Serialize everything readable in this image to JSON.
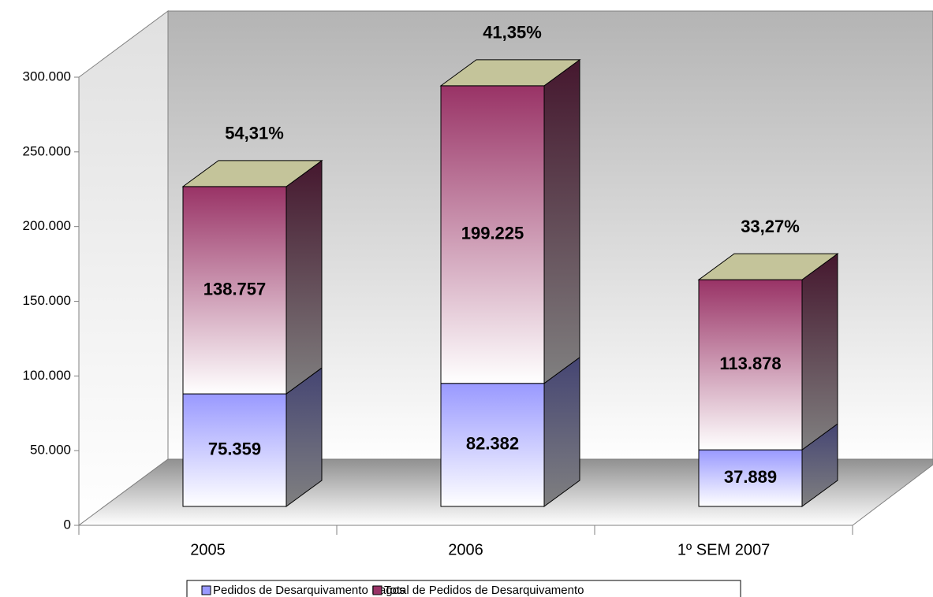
{
  "chart_data": {
    "type": "bar3d_stacked",
    "categories": [
      "2005",
      "2006",
      "1º SEM 2007"
    ],
    "series": [
      {
        "name": "Pedidos de Desarquivamento Pagos",
        "color": "#9999ff",
        "values": [
          75359,
          82382,
          37889
        ],
        "value_labels": [
          "75.359",
          "82.382",
          "37.889"
        ]
      },
      {
        "name": "Total de Pedidos de Desarquivamento",
        "color": "#993366",
        "values": [
          138757,
          199225,
          113878
        ],
        "value_labels": [
          "138.757",
          "199.225",
          "113.878"
        ]
      }
    ],
    "annotations": [
      "54,31%",
      "41,35%",
      "33,27%"
    ],
    "ylim": [
      0,
      300000
    ],
    "yticks": [
      0,
      {
        "value": 50000,
        "label": "50.000"
      },
      {
        "value": 100000,
        "label": "100.000"
      },
      {
        "value": 150000,
        "label": "150.000"
      },
      {
        "value": 200000,
        "label": "200.000"
      },
      {
        "value": 250000,
        "label": "250.000"
      },
      {
        "value": 300000,
        "label": "300.000"
      }
    ],
    "legend": "bottom"
  }
}
